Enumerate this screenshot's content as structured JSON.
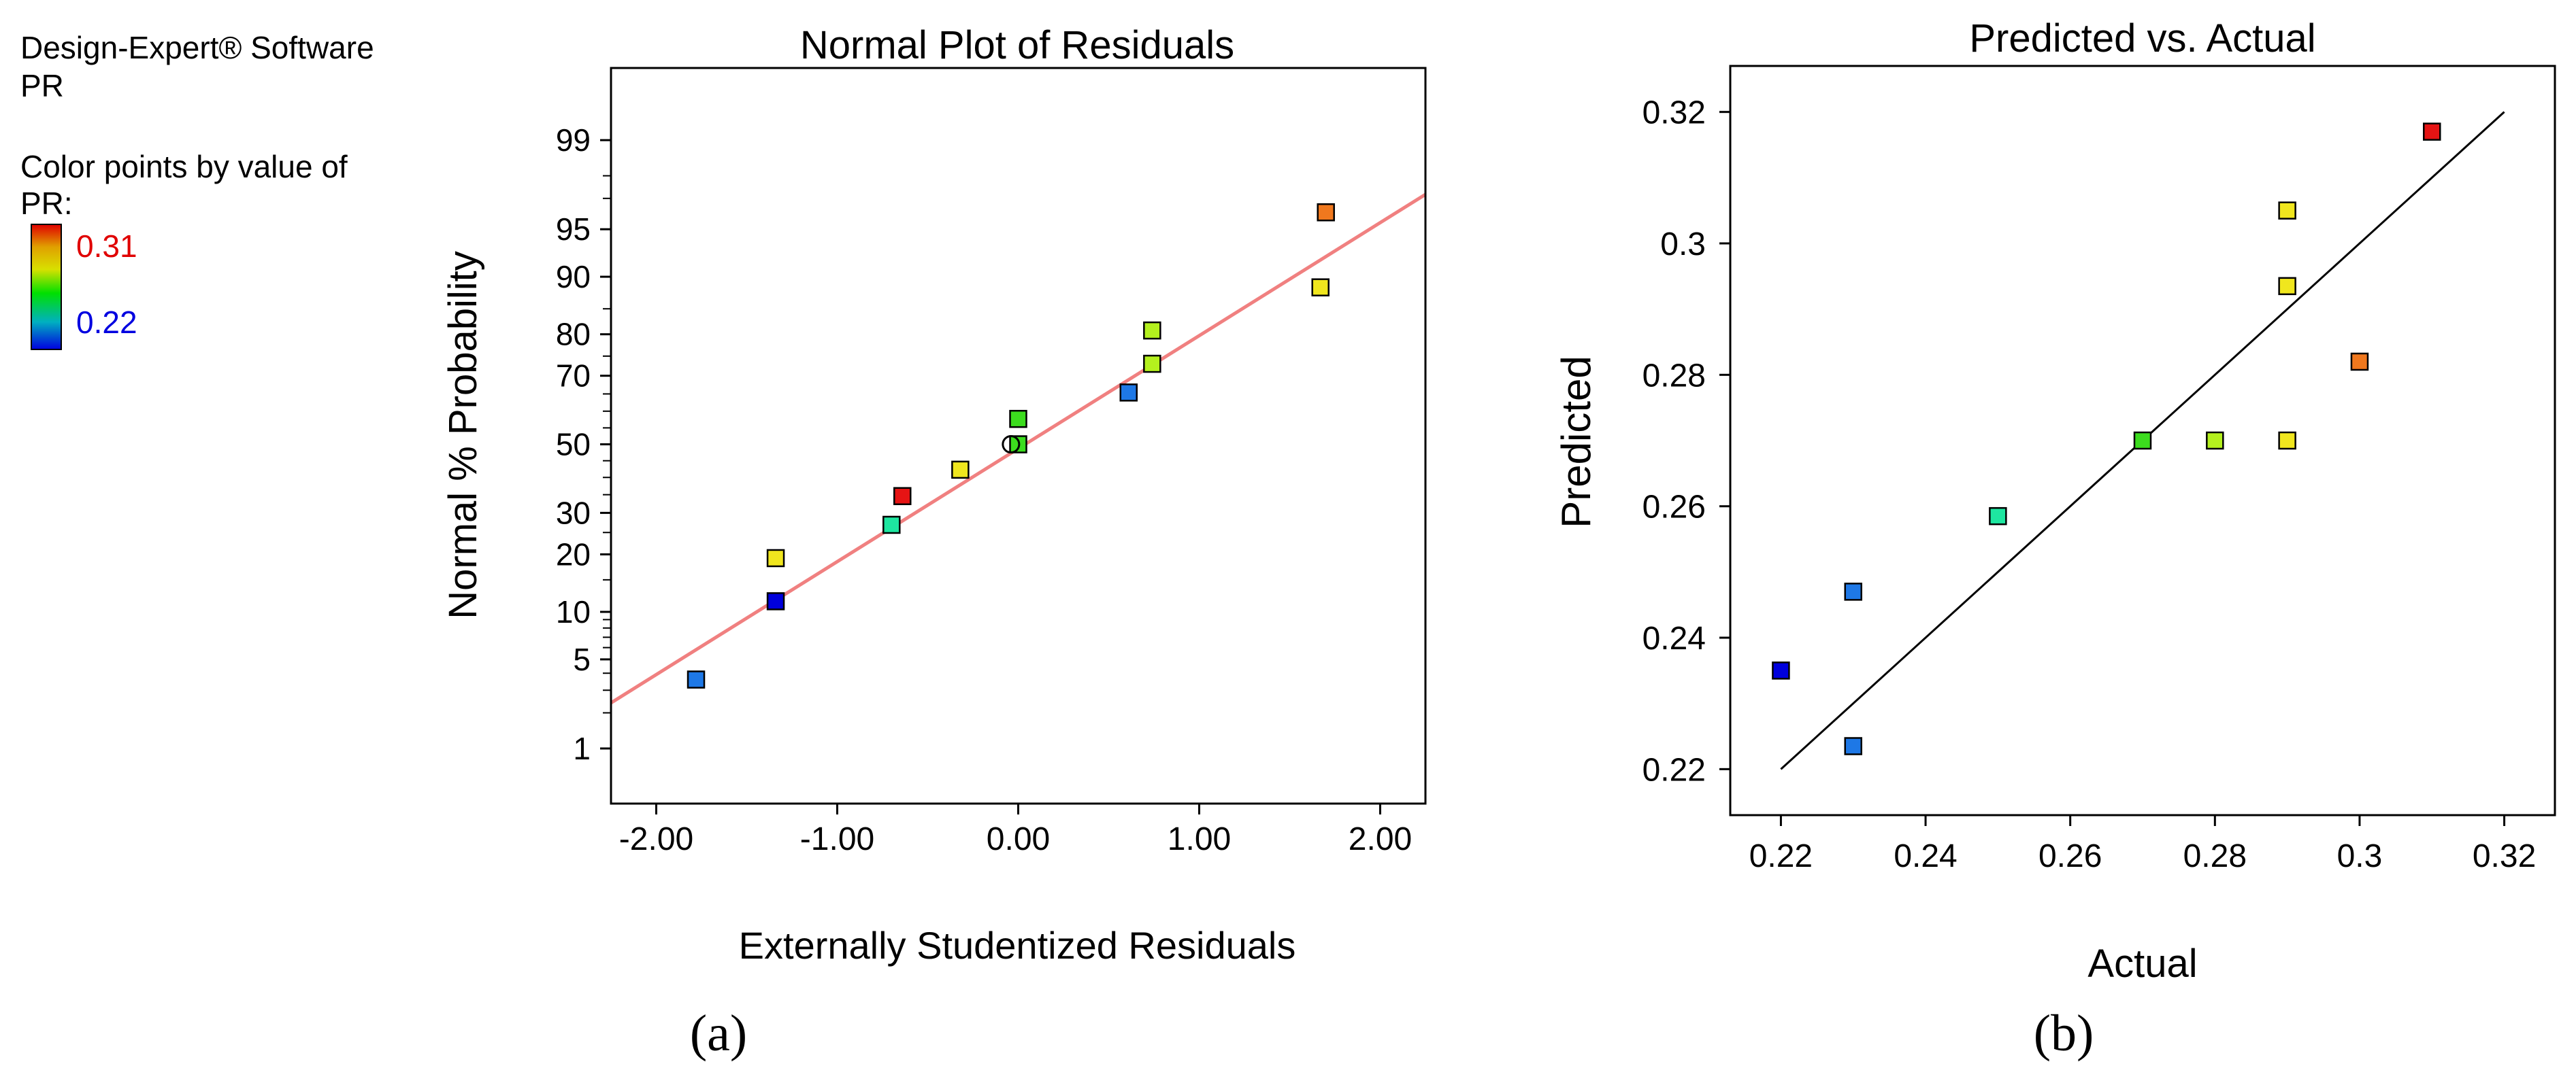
{
  "legend": {
    "software": "Design-Expert® Software",
    "response": "PR",
    "color_by_line1": "Color points by value of",
    "color_by_line2": "PR:",
    "max_label": "0.31",
    "min_label": "0.22",
    "max_color": "#e00000",
    "min_color": "#0000e0"
  },
  "chart_data": [
    {
      "id": "a",
      "type": "scatter",
      "title": "Normal Plot of Residuals",
      "xlabel": "Externally Studentized Residuals",
      "ylabel": "Normal % Probability",
      "panel_label": "(a)",
      "xlim": [
        -2.25,
        2.25
      ],
      "xticks": [
        -2,
        -1,
        0,
        1,
        2
      ],
      "xtick_labels": [
        "-2.00",
        "-1.00",
        "0.00",
        "1.00",
        "2.00"
      ],
      "yscale": "normal-probability",
      "ylim_percent": [
        0.3,
        99.8
      ],
      "yticks": [
        1,
        5,
        10,
        20,
        30,
        50,
        70,
        80,
        90,
        95,
        99
      ],
      "ytick_labels": [
        "1",
        "5",
        "10",
        "20",
        "30",
        "50",
        "70",
        "80",
        "90",
        "95",
        "99"
      ],
      "minor_yticks": [
        2,
        3,
        4,
        6,
        7,
        8,
        9,
        15,
        25,
        35,
        40,
        45,
        55,
        60,
        65,
        75,
        85,
        97,
        98
      ],
      "reference_line": {
        "color": "#f08080",
        "x": [
          -2.25,
          2.25
        ],
        "y_percent": [
          2.4,
          97.2
        ]
      },
      "points": [
        {
          "x": -1.78,
          "y": 3.6,
          "color": "#1e78e6"
        },
        {
          "x": -1.34,
          "y": 11.5,
          "color": "#0000dc"
        },
        {
          "x": -1.34,
          "y": 19.2,
          "color": "#f0e61e"
        },
        {
          "x": -0.7,
          "y": 26.9,
          "color": "#1ee6a0"
        },
        {
          "x": -0.64,
          "y": 34.6,
          "color": "#e61414"
        },
        {
          "x": -0.32,
          "y": 42.3,
          "color": "#f0e61e"
        },
        {
          "x": 0.0,
          "y": 50.0,
          "color": "#3cdc1e"
        },
        {
          "x": 0.0,
          "y": 57.7,
          "color": "#3cdc1e"
        },
        {
          "x": 0.61,
          "y": 65.4,
          "color": "#1e78e6"
        },
        {
          "x": 0.74,
          "y": 73.1,
          "color": "#b4f01e"
        },
        {
          "x": 0.74,
          "y": 80.8,
          "color": "#b4f01e"
        },
        {
          "x": 1.67,
          "y": 88.5,
          "color": "#f0e61e"
        },
        {
          "x": 1.7,
          "y": 96.2,
          "color": "#f0781e"
        }
      ],
      "open_circle": {
        "x": -0.04,
        "y": 50.0
      }
    },
    {
      "id": "b",
      "type": "scatter",
      "title": "Predicted vs. Actual",
      "xlabel": "Actual",
      "ylabel": "Predicted",
      "panel_label": "(b)",
      "xlim": [
        0.213,
        0.327
      ],
      "ylim": [
        0.213,
        0.327
      ],
      "xticks": [
        0.22,
        0.24,
        0.26,
        0.28,
        0.3,
        0.32
      ],
      "xtick_labels": [
        "0.22",
        "0.24",
        "0.26",
        "0.28",
        "0.3",
        "0.32"
      ],
      "yticks": [
        0.22,
        0.24,
        0.26,
        0.28,
        0.3,
        0.32
      ],
      "ytick_labels": [
        "0.22",
        "0.24",
        "0.26",
        "0.28",
        "0.3",
        "0.32"
      ],
      "reference_line": {
        "color": "#000000",
        "x": [
          0.22,
          0.32
        ],
        "y": [
          0.22,
          0.32
        ]
      },
      "points": [
        {
          "x": 0.22,
          "y": 0.235,
          "color": "#0000dc"
        },
        {
          "x": 0.23,
          "y": 0.247,
          "color": "#1e78e6"
        },
        {
          "x": 0.23,
          "y": 0.2235,
          "color": "#1e78e6"
        },
        {
          "x": 0.25,
          "y": 0.2585,
          "color": "#1ee6a0"
        },
        {
          "x": 0.27,
          "y": 0.27,
          "color": "#3cdc1e"
        },
        {
          "x": 0.28,
          "y": 0.27,
          "color": "#b4f01e"
        },
        {
          "x": 0.29,
          "y": 0.305,
          "color": "#f0e61e"
        },
        {
          "x": 0.29,
          "y": 0.2935,
          "color": "#f0e61e"
        },
        {
          "x": 0.29,
          "y": 0.27,
          "color": "#f0e61e"
        },
        {
          "x": 0.3,
          "y": 0.282,
          "color": "#f0781e"
        },
        {
          "x": 0.31,
          "y": 0.317,
          "color": "#e61414"
        }
      ]
    }
  ]
}
